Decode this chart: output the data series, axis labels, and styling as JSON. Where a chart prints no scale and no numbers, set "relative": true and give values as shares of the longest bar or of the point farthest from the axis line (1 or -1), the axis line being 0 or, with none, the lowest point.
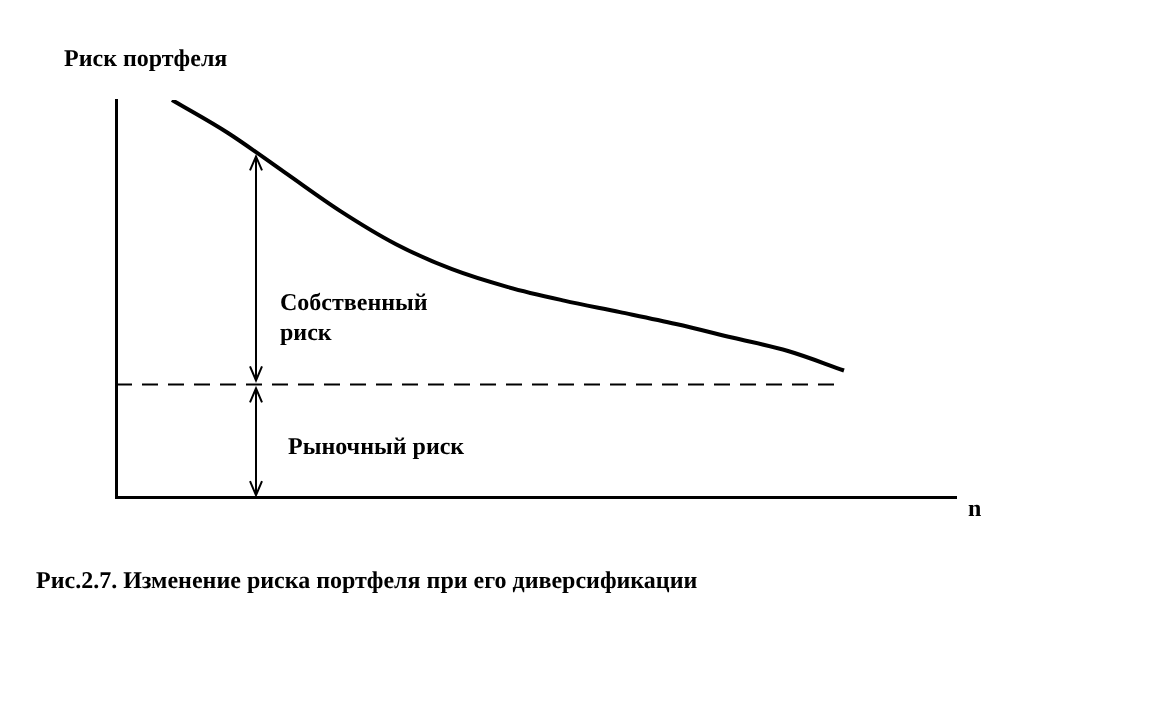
{
  "chart_data": {
    "type": "line",
    "relative": true,
    "ylabel": "Риск портфеля",
    "xlabel": "n",
    "categories": [
      null,
      null,
      null,
      null,
      null,
      null,
      null,
      null,
      null,
      null,
      null,
      null,
      null,
      null,
      null,
      null
    ],
    "series": [
      {
        "color": "#000000",
        "values": [
          null,
          1,
          0.917,
          0.819,
          0.721,
          0.637,
          0.574,
          0.529,
          0.495,
          0.466,
          0.436,
          0.402,
          0.368,
          0.319,
          null,
          null
        ]
      }
    ],
    "ref_lines": [
      {
        "axis": "y",
        "value": 0.284,
        "label": "Рыночный риск",
        "line_style": "dashed",
        "color": "#000000"
      }
    ],
    "annotations": [
      "Собственный риск",
      "Рис.2.7. Изменение риска портфеля при его диверсификации"
    ],
    "grid": false,
    "legend": false,
    "marker": "none",
    "line_style": "solid"
  }
}
